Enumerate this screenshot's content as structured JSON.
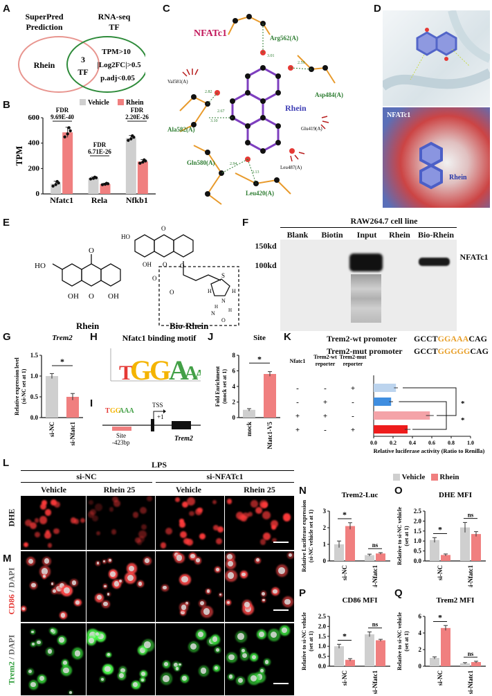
{
  "panels": {
    "A": "A",
    "B": "B",
    "C": "C",
    "D": "D",
    "E": "E",
    "F": "F",
    "G": "G",
    "H": "H",
    "I": "I",
    "J": "J",
    "K": "K",
    "L": "L",
    "M": "M",
    "N": "N",
    "O": "O",
    "P": "P",
    "Q": "Q"
  },
  "venn": {
    "left_title1": "SuperPred",
    "left_title2": "Prediction",
    "right_title1": "RNA-seq",
    "right_title2": "TF",
    "left_label": "Rhein",
    "center_num": "3",
    "center_label": "TF",
    "crit1": "TPM>10",
    "crit2": "|Log2FC|>0.5",
    "crit3": "p.adj<0.05",
    "left_color": "#e8958f",
    "right_color": "#2e8b3a"
  },
  "chart_data": [
    {
      "id": "B",
      "type": "bar",
      "categories": [
        "Nfatc1",
        "Rela",
        "Nfkb1"
      ],
      "ylabel": "TPM",
      "ylim": [
        0,
        600
      ],
      "yticks": [
        0,
        200,
        400,
        600
      ],
      "legend": [
        "Vehicle",
        "Rhein"
      ],
      "series": [
        {
          "name": "Vehicle",
          "color": "#cfcfcf",
          "values": [
            80,
            125,
            440
          ],
          "err": [
            20,
            8,
            20
          ]
        },
        {
          "name": "Rhein",
          "color": "#f07f7f",
          "values": [
            485,
            78,
            255
          ],
          "err": [
            40,
            6,
            15
          ]
        }
      ],
      "annotations": [
        "FDR",
        "9.69E-40",
        "FDR",
        "6.71E-26",
        "FDR",
        "2.20E-26"
      ]
    },
    {
      "id": "G",
      "type": "bar",
      "title": "Trem2",
      "categories": [
        "si-NC",
        "si-Nfatc1"
      ],
      "ylabel": "Relative expression level (si-NC set at 1)",
      "ylim": [
        0,
        1.5
      ],
      "yticks": [
        0.0,
        0.5,
        1.0,
        1.5
      ],
      "values": [
        1.0,
        0.5
      ],
      "err": [
        0.06,
        0.08
      ],
      "colors": [
        "#cfcfcf",
        "#f07f7f"
      ],
      "sig": "*"
    },
    {
      "id": "J",
      "type": "bar",
      "title": "Site",
      "categories": [
        "mock",
        "Nfatc1-V5"
      ],
      "ylabel": "Fold Enrichment (mock set at 1)",
      "ylim": [
        0,
        8
      ],
      "yticks": [
        0,
        2,
        4,
        6,
        8
      ],
      "values": [
        1.0,
        5.6
      ],
      "err": [
        0.15,
        0.3
      ],
      "colors": [
        "#cfcfcf",
        "#f07f7f"
      ],
      "sig": "*"
    },
    {
      "id": "K",
      "type": "bar",
      "orientation": "horizontal",
      "xlabel": "Relative luciferase activity (Ratio to Renilla)",
      "xlim": [
        0,
        1.0
      ],
      "xticks": [
        0.0,
        0.2,
        0.4,
        0.6,
        0.8,
        1.0
      ],
      "values": [
        0.23,
        0.18,
        0.58,
        0.35
      ],
      "err": [
        0.02,
        0.02,
        0.04,
        0.03
      ],
      "colors": [
        "#bcd4ee",
        "#3f8ee0",
        "#f4a3a8",
        "#ee1c1c"
      ],
      "sig": [
        "*",
        "*"
      ]
    },
    {
      "id": "N",
      "type": "bar",
      "title": "Trem2-Luc",
      "categories": [
        "si-NC",
        "si-Nfatc1"
      ],
      "ylabel": "Relative Luciferase expression (si-NC vehicle set at 1)",
      "ylim": [
        0,
        3
      ],
      "yticks": [
        0,
        1,
        2,
        3
      ],
      "series": [
        {
          "name": "Vehicle",
          "values": [
            1.0,
            0.35
          ],
          "err": [
            0.2,
            0.06
          ]
        },
        {
          "name": "Rhein",
          "values": [
            2.1,
            0.45
          ],
          "err": [
            0.2,
            0.05
          ]
        }
      ],
      "sig": [
        "*",
        "ns"
      ]
    },
    {
      "id": "O",
      "type": "bar",
      "title": "DHE MFI",
      "categories": [
        "si-NC",
        "si-Nfatc1"
      ],
      "ylabel": "Relative to si-NC vehicle (set at 1)",
      "ylim": [
        0,
        2.5
      ],
      "yticks": [
        0.0,
        0.5,
        1.0,
        1.5,
        2.0,
        2.5
      ],
      "series": [
        {
          "name": "Vehicle",
          "values": [
            1.05,
            1.68
          ],
          "err": [
            0.12,
            0.25
          ]
        },
        {
          "name": "Rhein",
          "values": [
            0.3,
            1.35
          ],
          "err": [
            0.05,
            0.12
          ]
        }
      ],
      "sig": [
        "*",
        "ns"
      ]
    },
    {
      "id": "P",
      "type": "bar",
      "title": "CD86 MFI",
      "categories": [
        "si-NC",
        "si-Nfatc1"
      ],
      "ylabel": "Relative to si-NC vehicle (set at 1)",
      "ylim": [
        0,
        2.5
      ],
      "yticks": [
        0.0,
        0.5,
        1.0,
        1.5,
        2.0,
        2.5
      ],
      "series": [
        {
          "name": "Vehicle",
          "values": [
            1.0,
            1.6
          ],
          "err": [
            0.1,
            0.12
          ]
        },
        {
          "name": "Rhein",
          "values": [
            0.32,
            1.3
          ],
          "err": [
            0.06,
            0.05
          ]
        }
      ],
      "sig": [
        "*",
        "ns"
      ]
    },
    {
      "id": "Q",
      "type": "bar",
      "title": "Trem2 MFI",
      "categories": [
        "si-NC",
        "si-Nfatc1"
      ],
      "ylabel": "Relative to si-NC vehicle (set at 1)",
      "ylim": [
        0,
        6
      ],
      "yticks": [
        0,
        2,
        4,
        6
      ],
      "series": [
        {
          "name": "Vehicle",
          "values": [
            1.0,
            0.35
          ],
          "err": [
            0.12,
            0.08
          ]
        },
        {
          "name": "Rhein",
          "values": [
            4.6,
            0.5
          ],
          "err": [
            0.3,
            0.1
          ]
        }
      ],
      "sig": [
        "*",
        "ns"
      ]
    }
  ],
  "legend_NOPQ": {
    "vehicle": "Vehicle",
    "rhein": "Rhein",
    "vehicle_color": "#cfcfcf",
    "rhein_color": "#f07f7f"
  },
  "C": {
    "protein": "NFATc1",
    "ligand": "Rhein",
    "residues": [
      "Arg562(A)",
      "Asp484(A)",
      "Ala582(A)",
      "Gln580(A)",
      "Leu420(A)",
      "Val581(A)",
      "Glu419(A)",
      "Leu487(A)"
    ],
    "distances": [
      "3.01",
      "2.59",
      "2.82",
      "2.67",
      "3.10",
      "2.94",
      "3.13"
    ]
  },
  "D": {
    "protein": "NFATc1",
    "ligand": "Rhein"
  },
  "E": {
    "left": "Rhein",
    "right": "Bio-Rhein",
    "atoms": [
      "HO",
      "O",
      "OH",
      "OH",
      "O",
      "OH",
      "O",
      "S",
      "H",
      "H",
      "N",
      "N",
      "O",
      "H",
      "H",
      "HO",
      "O",
      "O",
      "O",
      "O"
    ]
  },
  "F": {
    "title": "RAW264.7 cell line",
    "lanes": [
      "Blank",
      "Biotin",
      "Input",
      "Rhein",
      "Bio-Rhein"
    ],
    "mw": [
      "150kd",
      "100kd"
    ],
    "band": "NFATc1"
  },
  "H": {
    "title": "Nfatc1 binding motif",
    "motif": [
      "T",
      "G",
      "G",
      "A",
      "A",
      "A"
    ]
  },
  "I": {
    "seq_t": "T",
    "seq_g": "GG",
    "seq_a": "AAA",
    "site": "Site",
    "pos": "-423bp",
    "tss": "TSS",
    "plus1": "+1",
    "gene": "Trem2"
  },
  "K": {
    "wt_label": "Trem2-wt promoter",
    "mut_label": "Trem2-mut promoter",
    "wt_seq": [
      "GCCT",
      "GGAAA",
      "CAG"
    ],
    "mut_seq": [
      "GCCT",
      "GGGGG",
      "CAG"
    ],
    "cols": [
      "Nfatc1",
      "Trem2-wt reporter",
      "Trem2-mut reporter"
    ],
    "rows": [
      [
        "-",
        "-",
        "+"
      ],
      [
        "-",
        "+",
        "-"
      ],
      [
        "+",
        "+",
        "-"
      ],
      [
        "+",
        "-",
        "+"
      ]
    ]
  },
  "L": {
    "top": "LPS",
    "group1": "si-NC",
    "group2": "si-NFATc1",
    "cols": [
      "Vehicle",
      "Rhein 25",
      "Vehicle",
      "Rhein 25"
    ],
    "row_dhe": "DHE"
  },
  "M": {
    "row_cd86a": "CD86",
    "row_cd86b": " / DAPI",
    "row_trem2a": "Trem2",
    "row_trem2b": " / DAPI"
  }
}
